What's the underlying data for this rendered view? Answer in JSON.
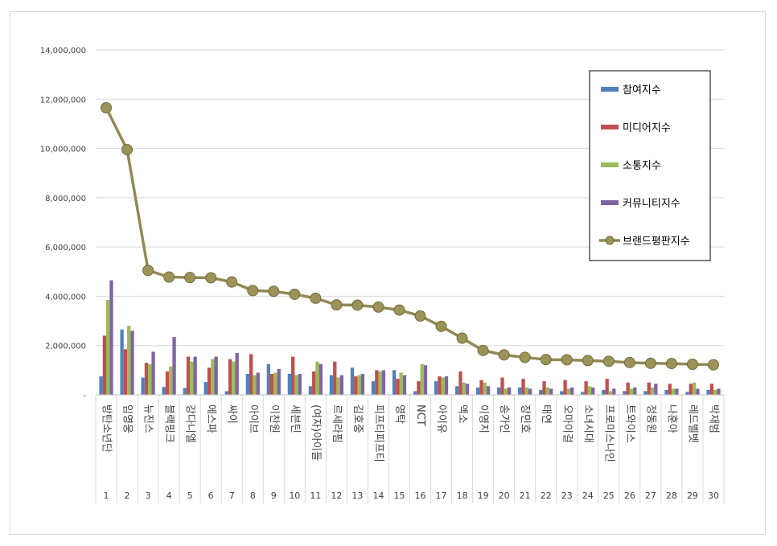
{
  "chart_data": {
    "type": "bar",
    "title": "",
    "xlabel": "",
    "ylabel": "",
    "ylim": [
      0,
      14000000
    ],
    "y_ticks": [
      0,
      2000000,
      4000000,
      6000000,
      8000000,
      10000000,
      12000000,
      14000000
    ],
    "y_tick_labels": [
      "-",
      "2,000,000",
      "4,000,000",
      "6,000,000",
      "8,000,000",
      "10,000,000",
      "12,000,000",
      "14,000,000"
    ],
    "grid": true,
    "legend_position": "top-right",
    "categories": [
      "방탄소년단",
      "임영웅",
      "뉴진스",
      "블랙핑크",
      "강다니엘",
      "에스파",
      "싸이",
      "아이브",
      "이찬원",
      "세븐틴",
      "(여자)아이들",
      "르세라핌",
      "김호중",
      "피프티피프티",
      "영탁",
      "NCT",
      "아이유",
      "엑소",
      "이영지",
      "송가인",
      "장민호",
      "태연",
      "오마이걸",
      "소녀시대",
      "프로미스나인",
      "트와이스",
      "정동원",
      "나훈아",
      "레드벨벳",
      "박재범"
    ],
    "ranks": [
      "1",
      "2",
      "3",
      "4",
      "5",
      "6",
      "7",
      "8",
      "9",
      "10",
      "11",
      "12",
      "13",
      "14",
      "15",
      "16",
      "17",
      "18",
      "19",
      "20",
      "21",
      "22",
      "23",
      "24",
      "25",
      "26",
      "27",
      "28",
      "29",
      "30"
    ],
    "series": [
      {
        "name": "참여지수",
        "kind": "bar",
        "color": "#4f81bd",
        "values": [
          750000,
          2650000,
          700000,
          320000,
          280000,
          520000,
          150000,
          850000,
          1250000,
          850000,
          350000,
          800000,
          1100000,
          550000,
          1000000,
          150000,
          550000,
          350000,
          300000,
          300000,
          300000,
          200000,
          150000,
          120000,
          200000,
          150000,
          150000,
          200000,
          120000,
          200000
        ]
      },
      {
        "name": "미디어지수",
        "kind": "bar",
        "color": "#c0504d",
        "values": [
          2400000,
          1850000,
          1300000,
          950000,
          1550000,
          1100000,
          1450000,
          1650000,
          850000,
          1550000,
          950000,
          1350000,
          750000,
          1000000,
          650000,
          550000,
          750000,
          950000,
          600000,
          700000,
          650000,
          550000,
          600000,
          550000,
          650000,
          500000,
          500000,
          450000,
          450000,
          450000
        ]
      },
      {
        "name": "소통지수",
        "kind": "bar",
        "color": "#9bbb59",
        "values": [
          3850000,
          2800000,
          1250000,
          1150000,
          1350000,
          1450000,
          1350000,
          800000,
          900000,
          800000,
          1350000,
          700000,
          800000,
          950000,
          900000,
          1250000,
          700000,
          500000,
          500000,
          250000,
          300000,
          300000,
          250000,
          350000,
          150000,
          250000,
          300000,
          250000,
          500000,
          200000
        ]
      },
      {
        "name": "커뮤니티지수",
        "kind": "bar",
        "color": "#8064a2",
        "values": [
          4650000,
          2600000,
          1750000,
          2350000,
          1550000,
          1550000,
          1700000,
          900000,
          1050000,
          850000,
          1250000,
          800000,
          850000,
          1000000,
          800000,
          1200000,
          750000,
          450000,
          350000,
          300000,
          250000,
          250000,
          300000,
          300000,
          250000,
          300000,
          450000,
          250000,
          250000,
          250000
        ]
      },
      {
        "name": "브랜드평판지수",
        "kind": "line",
        "color": "#938953",
        "values": [
          11650000,
          9950000,
          5050000,
          4780000,
          4760000,
          4750000,
          4580000,
          4230000,
          4200000,
          4080000,
          3920000,
          3650000,
          3640000,
          3560000,
          3440000,
          3200000,
          2780000,
          2300000,
          1800000,
          1620000,
          1520000,
          1430000,
          1420000,
          1390000,
          1360000,
          1310000,
          1280000,
          1270000,
          1240000,
          1220000
        ]
      }
    ]
  }
}
